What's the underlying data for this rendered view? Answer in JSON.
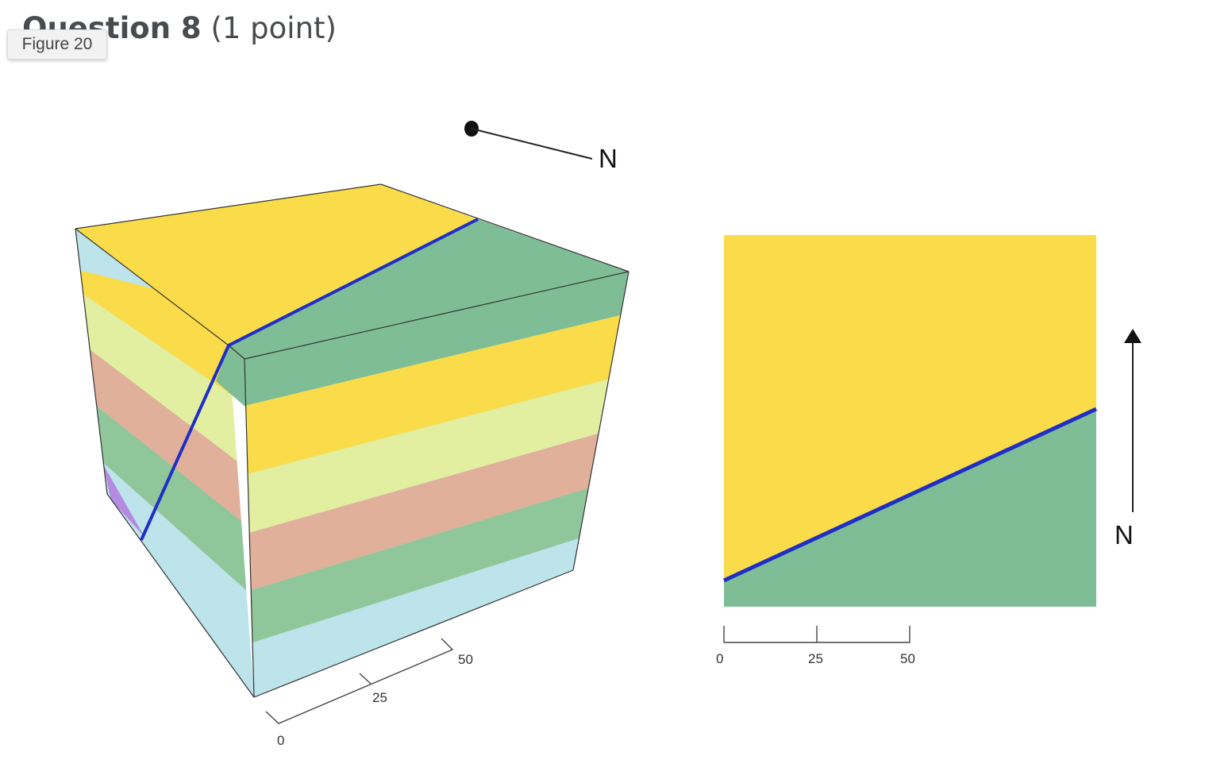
{
  "question": {
    "label": "Question 8",
    "points": "(1 point)"
  },
  "figure_tag": "Figure 20",
  "block_diagram": {
    "north_label": "N",
    "scale_ticks": [
      "0",
      "25",
      "50"
    ],
    "colors": {
      "yellow": "#fadc4a",
      "green_top": "#7fbd96",
      "pale_yellow": "#e2eea0",
      "salmon": "#e0b09a",
      "green_mid": "#8fc79b",
      "light_blue": "#bde3eb",
      "purple": "#b48be0",
      "fault_line": "#1f2fc6"
    }
  },
  "map_view": {
    "north_label": "N",
    "scale_ticks": [
      "0",
      "25",
      "50"
    ],
    "colors": {
      "yellow": "#fadc4a",
      "green": "#7fbd96",
      "fault_line": "#1f2fc6"
    }
  }
}
